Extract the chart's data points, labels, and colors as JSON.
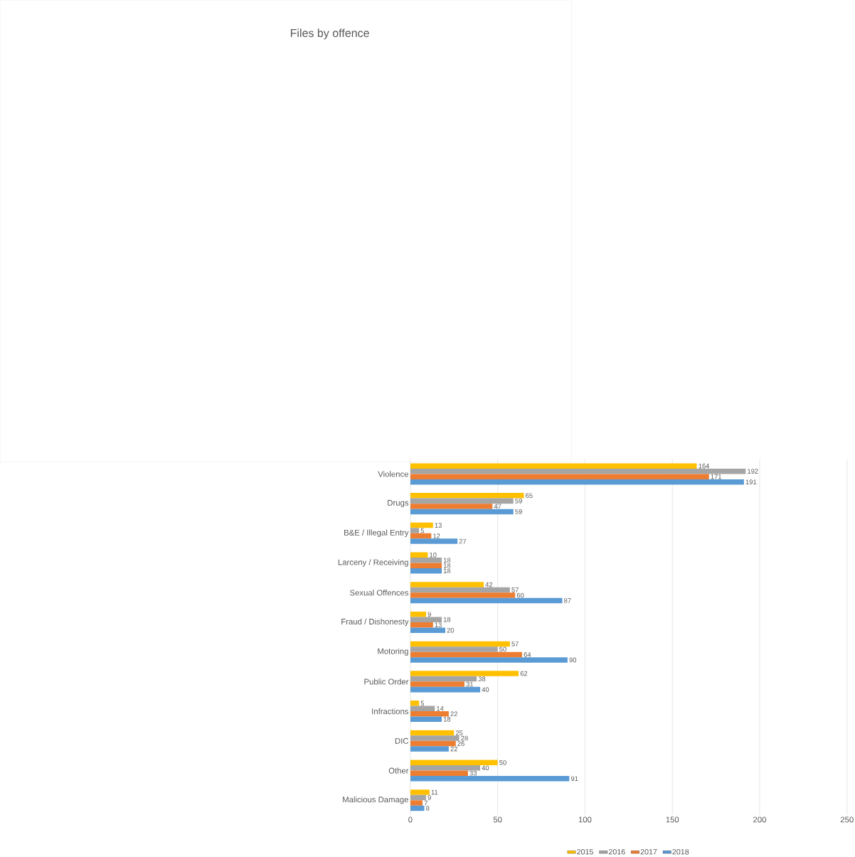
{
  "chart_data": {
    "type": "bar",
    "orientation": "horizontal",
    "title": "Files by offence",
    "categories": [
      "Violence",
      "Drugs",
      "B&E / Illegal Entry",
      "Larceny / Receiving",
      "Sexual Offences",
      "Fraud / Dishonesty",
      "Motoring",
      "Public Order",
      "Infractions",
      "DIC",
      "Other",
      "Malicious Damage"
    ],
    "series": [
      {
        "name": "2015",
        "color": "#ffc000",
        "values": [
          164,
          65,
          13,
          10,
          42,
          9,
          57,
          62,
          5,
          25,
          50,
          11
        ]
      },
      {
        "name": "2016",
        "color": "#a5a5a5",
        "values": [
          192,
          59,
          5,
          18,
          57,
          18,
          50,
          38,
          14,
          28,
          40,
          9
        ]
      },
      {
        "name": "2017",
        "color": "#ed7d31",
        "values": [
          171,
          47,
          12,
          18,
          60,
          13,
          64,
          31,
          22,
          26,
          33,
          7
        ]
      },
      {
        "name": "2018",
        "color": "#5b9bd5",
        "values": [
          191,
          59,
          27,
          18,
          87,
          20,
          90,
          40,
          18,
          22,
          91,
          8
        ]
      }
    ],
    "xlim": [
      0,
      250
    ],
    "xticks": [
      0,
      50,
      100,
      150,
      200,
      250
    ],
    "grid": "x",
    "legend": "bottom",
    "data_labels": true
  }
}
